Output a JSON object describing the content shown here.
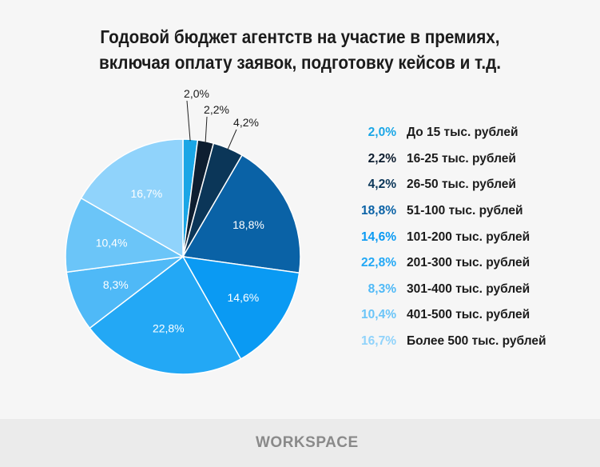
{
  "title": [
    "Годовой бюджет агентств на участие в премиях,",
    "включая оплату заявок, подготовку кейсов и т.д."
  ],
  "chart_data": {
    "type": "pie",
    "start": "top",
    "direction": "clockwise",
    "categories": [
      "До 15 тыс. рублей",
      "16-25 тыс. рублей",
      "26-50 тыс. рублей",
      "51-100 тыс. рублей",
      "101-200 тыс. рублей",
      "201-300 тыс. рублей",
      "301-400 тыс. рублей",
      "401-500 тыс. рублей",
      "Более 500 тыс. рублей"
    ],
    "values": [
      2.0,
      2.2,
      4.2,
      18.8,
      14.6,
      22.8,
      8.3,
      10.4,
      16.7
    ],
    "labels": [
      "2,0%",
      "2,2%",
      "4,2%",
      "18,8%",
      "14,6%",
      "22,8%",
      "8,3%",
      "10,4%",
      "16,7%"
    ],
    "colors": [
      "#1aa6e6",
      "#0e1e30",
      "#0b3658",
      "#0a62a6",
      "#0a9af3",
      "#23a8f5",
      "#4fb9f7",
      "#6bc5f8",
      "#90d3fb"
    ],
    "legend": "right"
  },
  "footer": {
    "logo": "WORKSPACE"
  }
}
